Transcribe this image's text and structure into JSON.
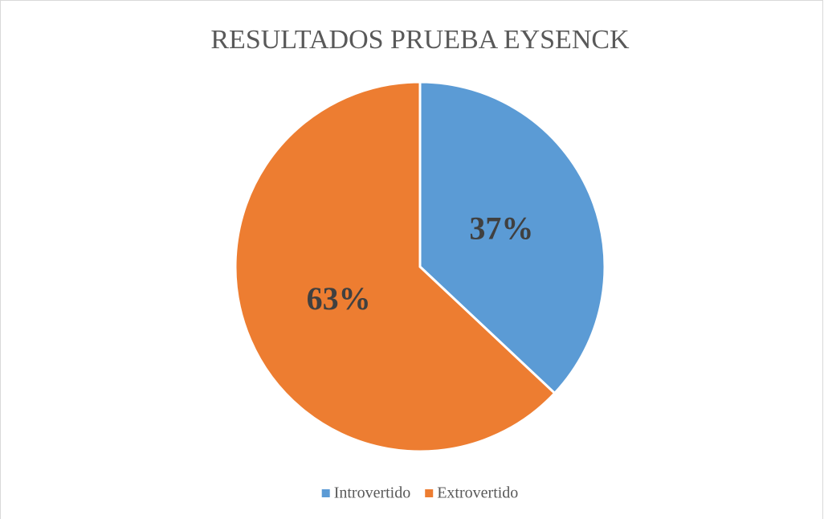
{
  "chart_data": {
    "type": "pie",
    "title": "RESULTADOS PRUEBA EYSENCK",
    "categories": [
      "Introvertido",
      "Extrovertido"
    ],
    "values": [
      37,
      63
    ],
    "value_labels": [
      "37%",
      "63%"
    ],
    "colors": [
      "#5b9bd5",
      "#ed7d31"
    ],
    "legend": "bottom"
  }
}
